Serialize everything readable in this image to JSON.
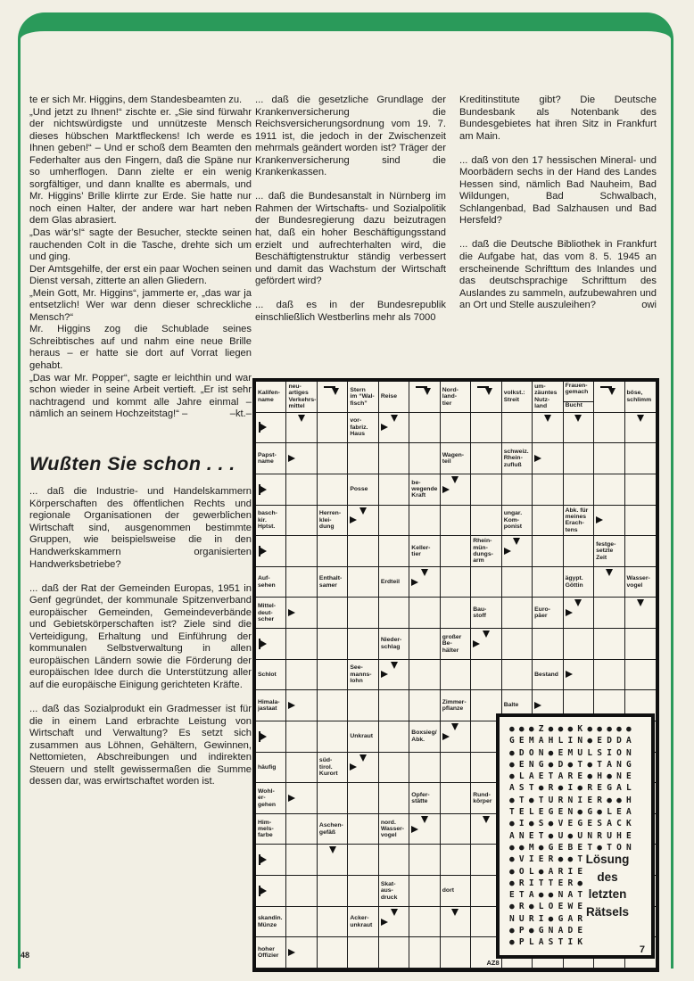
{
  "page": {
    "frame_color": "#2a9a5a",
    "paper_color": "#f2efe4",
    "page_number_left": "48"
  },
  "columns": {
    "heading": "Wußten Sie schon . . .",
    "col1_story": [
      "te er sich Mr. Higgins, dem Standesbeamten zu.",
      "„Und jetzt zu Ihnen!“ zischte er. „Sie sind fürwahr der nichtswürdigste und unnützeste Mensch dieses hübschen Marktfleckens! Ich werde es Ihnen geben!“ – Und er schoß dem Beamten den Federhalter aus den Fingern, daß die Späne nur so umherflogen. Dann zielte er ein wenig sorgfältiger, und dann knallte es abermals, und Mr. Higgins’ Brille klirrte zur Erde. Sie hatte nur noch einen Halter, der andere war hart neben dem Glas abrasiert.",
      "„Das wär’s!“ sagte der Besucher, steckte seinen rauchenden Colt in die Tasche, drehte sich um und ging.",
      "Der Amtsgehilfe, der erst ein paar Wochen seinen Dienst versah, zitterte an allen Gliedern.",
      "„Mein Gott, Mr. Higgins“, jammerte er, „das war ja entsetzlich! Wer war denn dieser schreckliche Mensch?“",
      "Mr. Higgins zog die Schublade seines Schreibtisches auf und nahm eine neue Brille heraus – er hatte sie dort auf Vorrat liegen gehabt.",
      {
        "text": "„Das war Mr. Popper“, sagte er leichthin und war schon wieder in seine Arbeit vertieft. „Er ist sehr nachtragend und kommt alle Jahre einmal – nämlich an seinem Hochzeitstag!“ –",
        "tail": "–kt.–"
      }
    ],
    "col1_facts": [
      "... daß die Industrie- und Handelskammern Körperschaften des öffentlichen Rechts und regionale Organisationen der gewerblichen Wirtschaft sind, ausgenommen bestimmte Gruppen, wie beispielsweise die in den Handwerkskammern organisierten Handwerksbetriebe?",
      "... daß der Rat der Gemeinden Europas, 1951 in Genf gegründet, der kommunale Spitzenverband europäischer Gemeinden, Gemeindeverbände und Gebietskörperschaften ist? Ziele sind die Verteidigung, Erhaltung und Einführung der kommunalen Selbstverwaltung in allen europäischen Ländern sowie die Förderung der europäischen Idee durch die Unterstützung aller auf die europäische Einigung gerichteten Kräfte.",
      "... daß das Sozialprodukt ein Gradmesser ist für die in einem Land erbrachte Leistung von Wirtschaft und Verwaltung? Es setzt sich zusammen aus Löhnen, Gehältern, Gewinnen, Nettomieten, Abschreibungen und indirekten Steuern und stellt gewissermaßen die Summe dessen dar, was erwirtschaftet worden ist."
    ],
    "col2_facts": [
      "... daß die gesetzliche Grundlage der Krankenversicherung die Reichsversicherungsordnung vom 19. 7. 1911 ist, die jedoch in der Zwischenzeit mehrmals geändert worden ist? Träger der Krankenversicherung sind die Krankenkassen.",
      "... daß die Bundesanstalt in Nürnberg im Rahmen der Wirtschafts- und Sozialpolitik der Bundesregierung dazu beizutragen hat, daß ein hoher Beschäftigungsstand erzielt und aufrechterhalten wird, die Beschäftigtenstruktur ständig verbessert und damit das Wachstum der Wirtschaft gefördert wird?",
      "... daß es in der Bundesrepublik einschließlich Westberlins mehr als 7000"
    ],
    "col3_facts": [
      "Kreditinstitute gibt? Die Deutsche Bundesbank als Notenbank des Bundesgebietes hat ihren Sitz in Frankfurt am Main.",
      "... daß von den 17 hessischen Mineral- und Moorbädern sechs in der Hand des Landes Hessen sind, nämlich Bad Nauheim, Bad Wildungen, Bad Schwalbach, Schlangenbad, Bad Salzhausen und Bad Hersfeld?",
      {
        "text": "... daß die Deutsche Bibliothek in Frankfurt die Aufgabe hat, das vom 8. 5. 1945 an erscheinende Schrifttum des Inlandes und das deutschsprachige Schrifttum des Auslandes zu sammeln, aufzubewahren und an Ort und Stelle auszuleihen?",
        "tail": "owi"
      }
    ]
  },
  "crossword": {
    "rows": 19,
    "cols": 13,
    "corner_label": "AZ8",
    "clues": [
      {
        "r": 1,
        "c": 1,
        "text": "Kalifen-\nname"
      },
      {
        "r": 1,
        "c": 2,
        "text": "neu-\nartiges\nVerkehrs-\nmittel"
      },
      {
        "r": 1,
        "c": 4,
        "text": "Stern\nim “Wal-\nfisch”"
      },
      {
        "r": 1,
        "c": 5,
        "text": "Reise"
      },
      {
        "r": 1,
        "c": 7,
        "text": "Nord-\nland-\ntier"
      },
      {
        "r": 1,
        "c": 9,
        "text": "volkst.:\nStreit"
      },
      {
        "r": 1,
        "c": 10,
        "text": "um-\nzäuntes\nNutz-\nland"
      },
      {
        "r": 1,
        "c": 11,
        "split": true,
        "top": "Frauen-\ngemach",
        "bottom": "Bucht"
      },
      {
        "r": 1,
        "c": 13,
        "text": "böse,\nschlimm"
      },
      {
        "r": 2,
        "c": 4,
        "text": "vor-\nfabriz.\nHaus"
      },
      {
        "r": 3,
        "c": 1,
        "text": "Papst-\nname"
      },
      {
        "r": 3,
        "c": 7,
        "text": "Wagen-\nteil"
      },
      {
        "r": 3,
        "c": 9,
        "text": "schweiz.\nRhein-\nzufluß"
      },
      {
        "r": 4,
        "c": 4,
        "text": "Posse"
      },
      {
        "r": 4,
        "c": 6,
        "text": "be-\nwegende\nKraft"
      },
      {
        "r": 5,
        "c": 1,
        "text": "basch-\nkir.\nHptst."
      },
      {
        "r": 5,
        "c": 3,
        "text": "Herren-\nklei-\ndung"
      },
      {
        "r": 5,
        "c": 9,
        "text": "ungar.\nKom-\nponist"
      },
      {
        "r": 5,
        "c": 11,
        "text": "Abk. für\nmeines\nErach-\ntens"
      },
      {
        "r": 6,
        "c": 6,
        "text": "Keller-\ntier"
      },
      {
        "r": 6,
        "c": 8,
        "text": "Rhein-\nmün-\ndungs-\narm"
      },
      {
        "r": 6,
        "c": 12,
        "text": "festge-\nsetzte\nZeit"
      },
      {
        "r": 7,
        "c": 1,
        "text": "Auf-\nsehen"
      },
      {
        "r": 7,
        "c": 3,
        "text": "Enthalt-\nsamer"
      },
      {
        "r": 7,
        "c": 5,
        "text": "Erdteil"
      },
      {
        "r": 7,
        "c": 11,
        "text": "ägypt.\nGöttin"
      },
      {
        "r": 7,
        "c": 13,
        "text": "Wasser-\nvogel"
      },
      {
        "r": 8,
        "c": 1,
        "text": "Mittel-\ndeut-\nscher"
      },
      {
        "r": 8,
        "c": 8,
        "text": "Bau-\nstoff"
      },
      {
        "r": 8,
        "c": 10,
        "text": "Euro-\npäer"
      },
      {
        "r": 9,
        "c": 5,
        "text": "Nieder-\nschlag"
      },
      {
        "r": 9,
        "c": 7,
        "text": "großer\nBe-\nhälter"
      },
      {
        "r": 10,
        "c": 1,
        "text": "Schlot"
      },
      {
        "r": 10,
        "c": 4,
        "text": "See-\nmanns-\nlohn"
      },
      {
        "r": 10,
        "c": 10,
        "text": "Bestand"
      },
      {
        "r": 11,
        "c": 1,
        "text": "Himala-\njastaat"
      },
      {
        "r": 11,
        "c": 7,
        "text": "Zimmer-\npflanze"
      },
      {
        "r": 11,
        "c": 9,
        "text": "Balte"
      },
      {
        "r": 12,
        "c": 4,
        "text": "Unkraut"
      },
      {
        "r": 12,
        "c": 6,
        "text": "Boxsieg/\nAbk."
      },
      {
        "r": 13,
        "c": 1,
        "text": "häufig"
      },
      {
        "r": 13,
        "c": 3,
        "text": "süd-\ntirol.\nKurort"
      },
      {
        "r": 14,
        "c": 1,
        "text": "Wohl-\ner-\ngehen"
      },
      {
        "r": 14,
        "c": 6,
        "text": "Opfer-\nstätte"
      },
      {
        "r": 14,
        "c": 8,
        "text": "Rund-\nkörper"
      },
      {
        "r": 15,
        "c": 1,
        "text": "Him-\nmels-\nfarbe"
      },
      {
        "r": 15,
        "c": 3,
        "text": "Aschen-\ngefäß"
      },
      {
        "r": 15,
        "c": 5,
        "text": "nord.\nWasser-\nvogel"
      },
      {
        "r": 17,
        "c": 5,
        "text": "Skat-\naus-\ndruck"
      },
      {
        "r": 17,
        "c": 7,
        "text": "dort"
      },
      {
        "r": 18,
        "c": 1,
        "text": "skandin.\nMünze"
      },
      {
        "r": 18,
        "c": 4,
        "text": "Acker-\nunkraut"
      },
      {
        "r": 19,
        "c": 1,
        "text": "hoher\nOffizier"
      }
    ],
    "arrows": [
      {
        "r": 1,
        "c": 3,
        "t": "corner"
      },
      {
        "r": 1,
        "c": 6,
        "t": "corner"
      },
      {
        "r": 1,
        "c": 8,
        "t": "corner"
      },
      {
        "r": 1,
        "c": 12,
        "t": "corner"
      },
      {
        "r": 2,
        "c": 1,
        "t": "flag"
      },
      {
        "r": 2,
        "c": 2,
        "t": "down"
      },
      {
        "r": 2,
        "c": 5,
        "t": "down"
      },
      {
        "r": 2,
        "c": 5,
        "t": "right"
      },
      {
        "r": 2,
        "c": 10,
        "t": "down"
      },
      {
        "r": 2,
        "c": 11,
        "t": "down"
      },
      {
        "r": 2,
        "c": 13,
        "t": "down"
      },
      {
        "r": 3,
        "c": 2,
        "t": "right"
      },
      {
        "r": 3,
        "c": 10,
        "t": "right"
      },
      {
        "r": 4,
        "c": 1,
        "t": "flag"
      },
      {
        "r": 4,
        "c": 7,
        "t": "down"
      },
      {
        "r": 4,
        "c": 7,
        "t": "right"
      },
      {
        "r": 5,
        "c": 4,
        "t": "down"
      },
      {
        "r": 5,
        "c": 4,
        "t": "right"
      },
      {
        "r": 5,
        "c": 12,
        "t": "right"
      },
      {
        "r": 6,
        "c": 1,
        "t": "flag"
      },
      {
        "r": 6,
        "c": 9,
        "t": "down"
      },
      {
        "r": 6,
        "c": 9,
        "t": "right"
      },
      {
        "r": 7,
        "c": 6,
        "t": "down"
      },
      {
        "r": 7,
        "c": 6,
        "t": "right"
      },
      {
        "r": 7,
        "c": 12,
        "t": "down"
      },
      {
        "r": 8,
        "c": 2,
        "t": "right"
      },
      {
        "r": 8,
        "c": 11,
        "t": "down"
      },
      {
        "r": 8,
        "c": 11,
        "t": "right"
      },
      {
        "r": 8,
        "c": 13,
        "t": "down"
      },
      {
        "r": 9,
        "c": 1,
        "t": "flag"
      },
      {
        "r": 9,
        "c": 8,
        "t": "down"
      },
      {
        "r": 9,
        "c": 8,
        "t": "right"
      },
      {
        "r": 10,
        "c": 5,
        "t": "down"
      },
      {
        "r": 10,
        "c": 5,
        "t": "right"
      },
      {
        "r": 10,
        "c": 11,
        "t": "right"
      },
      {
        "r": 11,
        "c": 2,
        "t": "right"
      },
      {
        "r": 11,
        "c": 10,
        "t": "right"
      },
      {
        "r": 12,
        "c": 1,
        "t": "flag"
      },
      {
        "r": 12,
        "c": 7,
        "t": "down"
      },
      {
        "r": 12,
        "c": 7,
        "t": "right"
      },
      {
        "r": 13,
        "c": 4,
        "t": "down"
      },
      {
        "r": 13,
        "c": 4,
        "t": "right"
      },
      {
        "r": 14,
        "c": 2,
        "t": "right"
      },
      {
        "r": 15,
        "c": 6,
        "t": "down"
      },
      {
        "r": 15,
        "c": 6,
        "t": "right"
      },
      {
        "r": 15,
        "c": 8,
        "t": "down"
      },
      {
        "r": 16,
        "c": 1,
        "t": "flag"
      },
      {
        "r": 16,
        "c": 3,
        "t": "down"
      },
      {
        "r": 17,
        "c": 1,
        "t": "flag"
      },
      {
        "r": 18,
        "c": 5,
        "t": "down"
      },
      {
        "r": 18,
        "c": 5,
        "t": "right"
      },
      {
        "r": 18,
        "c": 7,
        "t": "down"
      },
      {
        "r": 19,
        "c": 2,
        "t": "right"
      }
    ]
  },
  "solution": {
    "rows": [
      "●●●Z●●●K●●●●●",
      "GEMAHLIN●EDDA",
      "●DON●EMULSION",
      "●ENG●D●T●TANG",
      "●LAETARE●H●NE",
      "AST●R●I●REGAL",
      "●T●TURNIER●●H",
      "TELEGEN●G●LEA",
      "●I●S●VEGESACK",
      "ANET●U●UNRUHE",
      "●●M●GEBET●TON",
      "●VIER●●T",
      "●OL●ARIE",
      "●RITTER●",
      "ETA●●NAT",
      "●R●LOEWE",
      "NURI●GAR",
      "●P●GNADE",
      "●PLASTIK"
    ],
    "caption": [
      "Lösung",
      "des",
      "letzten",
      "Rätsels"
    ],
    "page_number": "7"
  }
}
